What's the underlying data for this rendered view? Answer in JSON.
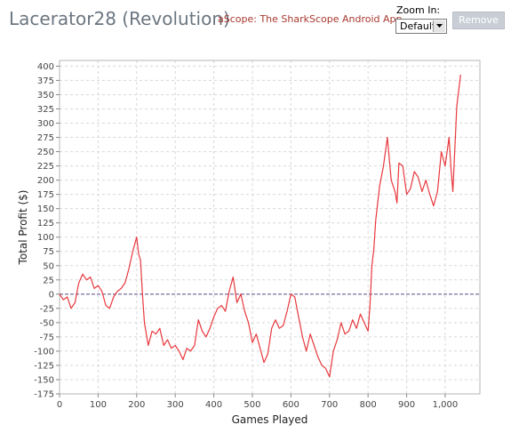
{
  "header": {
    "title": "Lacerator28 (Revolution)",
    "promo_link": "aScope: The SharkScope Android App",
    "zoom_label": "Zoom In:",
    "zoom_value": "Default",
    "remove_label": "Remove"
  },
  "colors": {
    "line": "#e8383d",
    "zero_line": "#5b4e8c",
    "grid": "#d8d8d8",
    "title": "#6b7680",
    "link": "#a8392e"
  },
  "chart_data": {
    "type": "line",
    "title": "",
    "xlabel": "Games Played",
    "ylabel": "Total Profit ($)",
    "xlim": [
      0,
      1090
    ],
    "ylim": [
      -175,
      410
    ],
    "xticks": [
      0,
      100,
      200,
      300,
      400,
      500,
      600,
      700,
      800,
      900,
      1000
    ],
    "xtick_labels": [
      "0",
      "100",
      "200",
      "300",
      "400",
      "500",
      "600",
      "700",
      "800",
      "900",
      "1,000"
    ],
    "yticks": [
      -175,
      -150,
      -125,
      -100,
      -75,
      -50,
      -25,
      0,
      25,
      50,
      75,
      100,
      125,
      150,
      175,
      200,
      225,
      250,
      275,
      300,
      325,
      350,
      375,
      400
    ],
    "grid": true,
    "series": [
      {
        "x": [
          0,
          10,
          20,
          30,
          40,
          50,
          60,
          70,
          80,
          90,
          100,
          110,
          120,
          130,
          140,
          150,
          160,
          170,
          180,
          190,
          200,
          205,
          210,
          215,
          220,
          230,
          240,
          250,
          260,
          270,
          280,
          290,
          300,
          310,
          320,
          330,
          340,
          350,
          360,
          370,
          380,
          390,
          400,
          410,
          420,
          430,
          440,
          450,
          460,
          470,
          480,
          490,
          500,
          510,
          520,
          530,
          540,
          550,
          560,
          570,
          580,
          590,
          600,
          610,
          620,
          630,
          640,
          650,
          660,
          670,
          680,
          690,
          700,
          710,
          720,
          730,
          740,
          750,
          760,
          770,
          780,
          790,
          800,
          805,
          810,
          815,
          820,
          830,
          840,
          850,
          860,
          870,
          875,
          880,
          890,
          900,
          910,
          920,
          930,
          940,
          950,
          960,
          970,
          980,
          990,
          1000,
          1010,
          1015,
          1020,
          1030,
          1040
        ],
        "y": [
          0,
          -10,
          -5,
          -25,
          -15,
          20,
          35,
          25,
          30,
          10,
          15,
          5,
          -20,
          -25,
          -5,
          5,
          10,
          20,
          45,
          75,
          100,
          70,
          60,
          0,
          -50,
          -90,
          -65,
          -70,
          -60,
          -90,
          -80,
          -95,
          -90,
          -100,
          -115,
          -95,
          -100,
          -90,
          -45,
          -65,
          -75,
          -60,
          -40,
          -25,
          -20,
          -30,
          5,
          30,
          -15,
          0,
          -30,
          -50,
          -85,
          -70,
          -95,
          -120,
          -105,
          -60,
          -45,
          -60,
          -55,
          -30,
          0,
          -5,
          -40,
          -75,
          -100,
          -70,
          -90,
          -110,
          -125,
          -130,
          -145,
          -100,
          -80,
          -50,
          -70,
          -65,
          -45,
          -60,
          -35,
          -50,
          -65,
          -20,
          50,
          80,
          130,
          190,
          225,
          275,
          200,
          180,
          160,
          230,
          225,
          175,
          185,
          215,
          205,
          180,
          200,
          175,
          155,
          180,
          250,
          225,
          275,
          220,
          180,
          330,
          385
        ]
      }
    ]
  }
}
